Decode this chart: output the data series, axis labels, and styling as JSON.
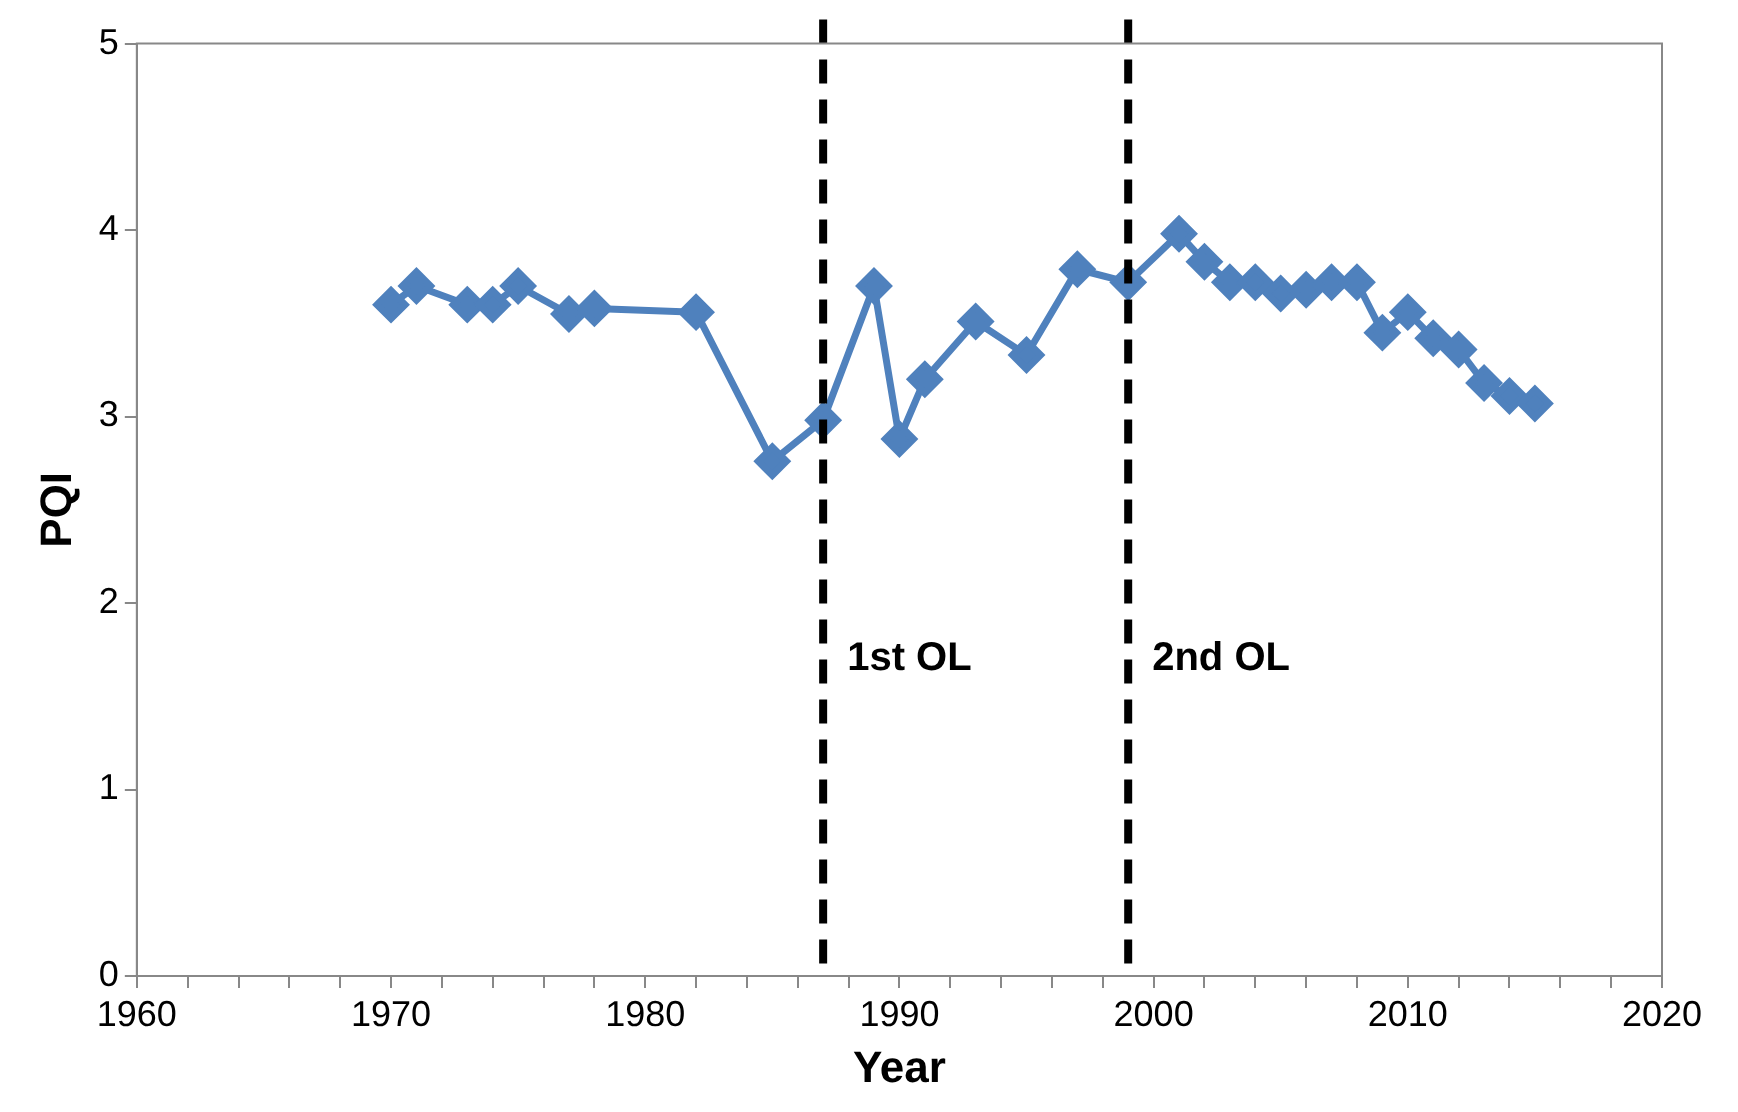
{
  "chart_data": {
    "type": "line",
    "xlabel": "Year",
    "ylabel": "PQI",
    "x": [
      1970,
      1971,
      1973,
      1974,
      1975,
      1977,
      1978,
      1982,
      1985,
      1987,
      1989,
      1990,
      1991,
      1993,
      1995,
      1997,
      1999,
      2001,
      2002,
      2003,
      2004,
      2005,
      2006,
      2007,
      2008,
      2009,
      2010,
      2011,
      2012,
      2013,
      2014,
      2015
    ],
    "series": [
      {
        "color": "#4f81bd",
        "values": [
          3.6,
          3.7,
          3.6,
          3.6,
          3.7,
          3.55,
          3.58,
          3.56,
          2.76,
          2.98,
          3.7,
          2.88,
          3.2,
          3.51,
          3.33,
          3.79,
          3.72,
          3.98,
          3.83,
          3.72,
          3.72,
          3.66,
          3.68,
          3.72,
          3.72,
          3.45,
          3.56,
          3.42,
          3.36,
          3.18,
          3.11,
          3.07
        ]
      }
    ],
    "xlim": [
      1960,
      2020
    ],
    "xticks": [
      1960,
      {
        "value": 1962,
        "label": null
      },
      {
        "value": 1964,
        "label": null
      },
      {
        "value": 1966,
        "label": null
      },
      {
        "value": 1968,
        "label": null
      },
      1970,
      {
        "value": 1972,
        "label": null
      },
      {
        "value": 1974,
        "label": null
      },
      {
        "value": 1976,
        "label": null
      },
      {
        "value": 1978,
        "label": null
      },
      1980,
      {
        "value": 1982,
        "label": null
      },
      {
        "value": 1984,
        "label": null
      },
      {
        "value": 1986,
        "label": null
      },
      {
        "value": 1988,
        "label": null
      },
      1990,
      {
        "value": 1992,
        "label": null
      },
      {
        "value": 1994,
        "label": null
      },
      {
        "value": 1996,
        "label": null
      },
      {
        "value": 1998,
        "label": null
      },
      2000,
      {
        "value": 2002,
        "label": null
      },
      {
        "value": 2004,
        "label": null
      },
      {
        "value": 2006,
        "label": null
      },
      {
        "value": 2008,
        "label": null
      },
      2010,
      {
        "value": 2012,
        "label": null
      },
      {
        "value": 2014,
        "label": null
      },
      {
        "value": 2016,
        "label": null
      },
      {
        "value": 2018,
        "label": null
      },
      2020
    ],
    "ylim": [
      0,
      5
    ],
    "yticks": [
      0,
      1,
      2,
      3,
      4,
      5
    ],
    "ref_lines": [
      {
        "axis": "x",
        "value": 1987,
        "label": "1st OL",
        "color": "#000000",
        "line_style": "dashed"
      },
      {
        "axis": "x",
        "value": 1999,
        "label": "2nd OL",
        "color": "#000000",
        "line_style": "dashed"
      }
    ],
    "grid": false,
    "legend": false,
    "marker": "diamond",
    "line_style": "solid"
  }
}
